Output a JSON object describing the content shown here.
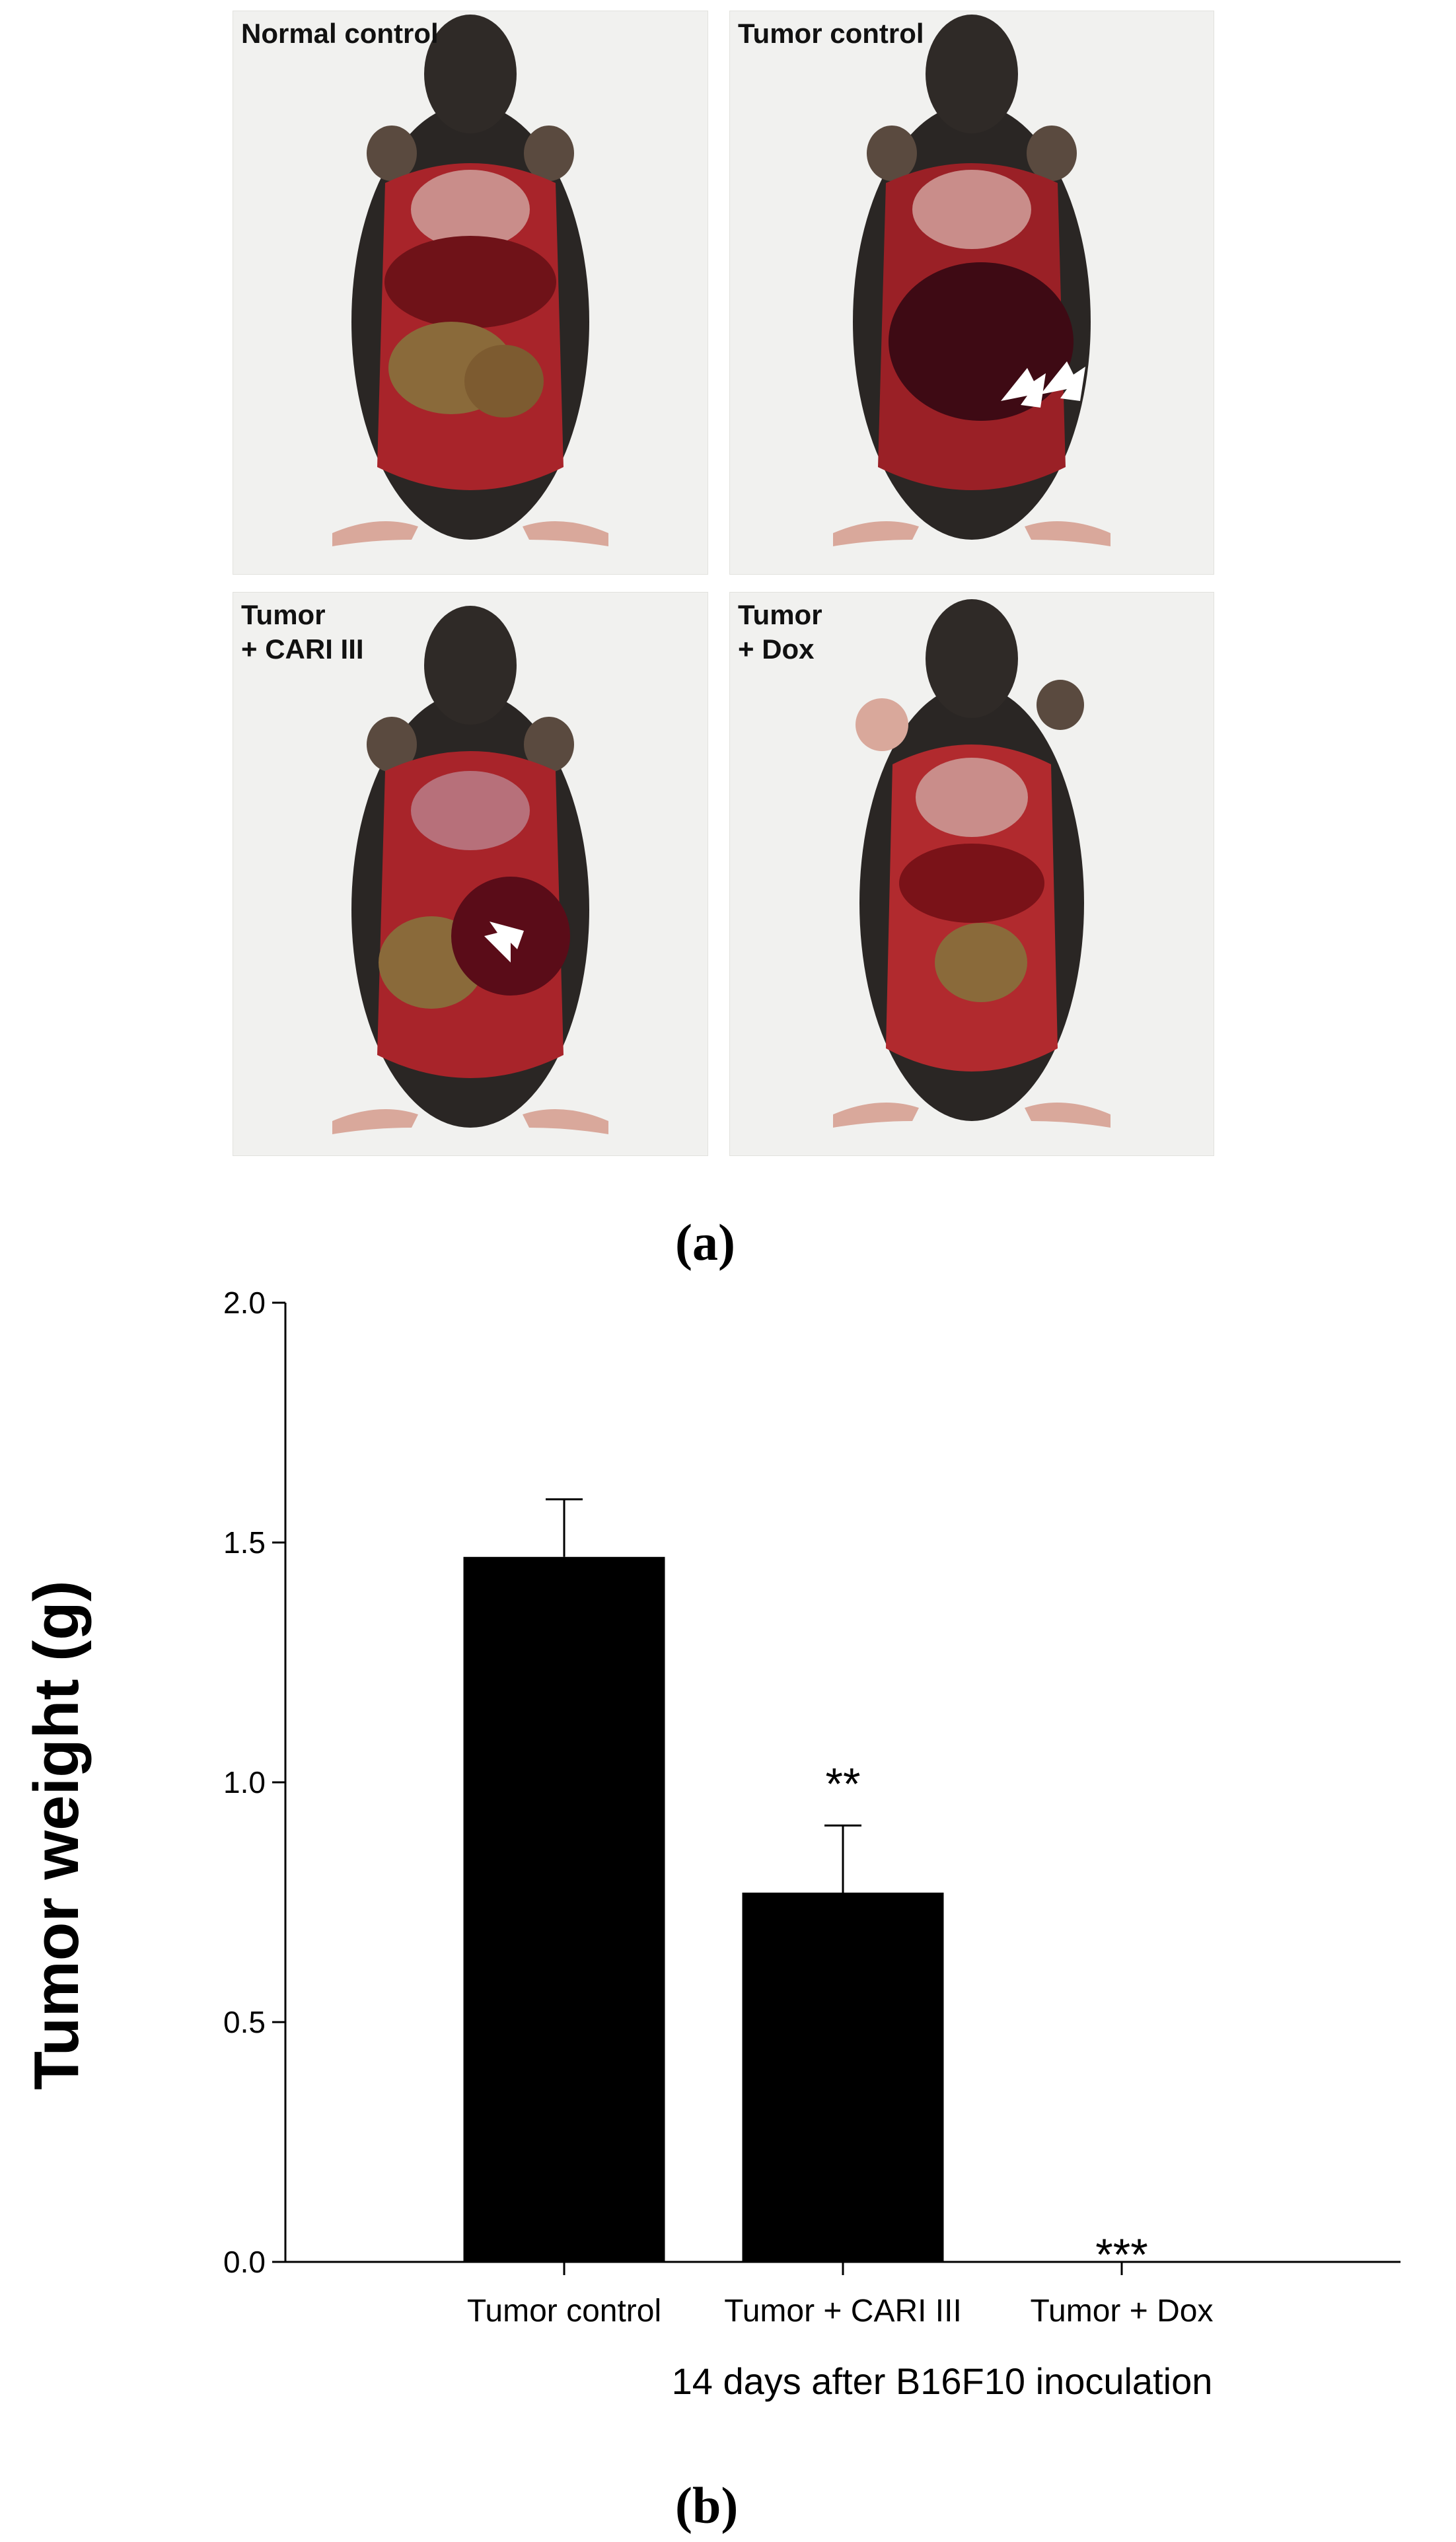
{
  "panels": [
    {
      "label": "Normal control"
    },
    {
      "label": "Tumor control"
    },
    {
      "label": "Tumor\n + CARI III"
    },
    {
      "label": "Tumor\n + Dox"
    }
  ],
  "figure_labels": {
    "a": "(a)",
    "b": "(b)"
  },
  "chart_data": {
    "type": "bar",
    "categories": [
      "Tumor control",
      "Tumor +  CARI III",
      "Tumor + Dox"
    ],
    "values": [
      1.47,
      0.77,
      0.0
    ],
    "errors": [
      0.12,
      0.14,
      0.0
    ],
    "annotations": [
      "",
      "**",
      "***"
    ],
    "xlabel": "14 days after B16F10 inoculation",
    "ylabel": "Tumor weight (g)",
    "ylim": [
      0,
      2.0
    ],
    "yticks": [
      "0.0",
      "0.5",
      "1.0",
      "1.5",
      "2.0"
    ],
    "bar_color": "#000000",
    "grid": false
  }
}
